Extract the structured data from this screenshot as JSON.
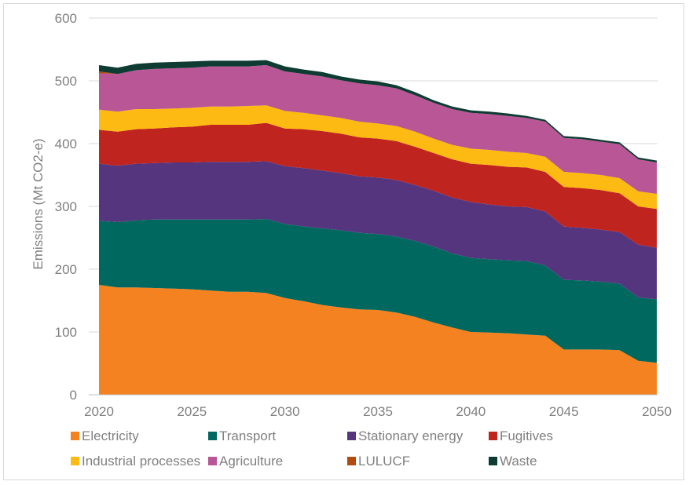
{
  "chart_data": {
    "type": "area",
    "stacked": true,
    "title": "",
    "xlabel": "",
    "ylabel": "Emissions (Mt CO2-e)",
    "xlim": [
      2020,
      2050
    ],
    "ylim": [
      0,
      600
    ],
    "x_ticks": [
      2020,
      2025,
      2030,
      2035,
      2040,
      2045,
      2050
    ],
    "y_ticks": [
      0,
      100,
      200,
      300,
      400,
      500,
      600
    ],
    "grid": true,
    "legend_position": "bottom",
    "x": [
      2020,
      2021,
      2022,
      2023,
      2024,
      2025,
      2026,
      2027,
      2028,
      2029,
      2030,
      2031,
      2032,
      2033,
      2034,
      2035,
      2036,
      2037,
      2038,
      2039,
      2040,
      2041,
      2042,
      2043,
      2044,
      2045,
      2046,
      2047,
      2048,
      2049,
      2050
    ],
    "series": [
      {
        "name": "Electricity",
        "color": "#F58220",
        "values": [
          175,
          171,
          171,
          170,
          169,
          168,
          166,
          164,
          164,
          162,
          154,
          149,
          143,
          139,
          136,
          135,
          131,
          124,
          115,
          107,
          100,
          99,
          98,
          96,
          94,
          72,
          72,
          72,
          71,
          54,
          51
        ]
      },
      {
        "name": "Transport",
        "color": "#00685E",
        "values": [
          102,
          104,
          107,
          109,
          110,
          111,
          113,
          115,
          115,
          118,
          118,
          119,
          122,
          123,
          122,
          121,
          121,
          121,
          121,
          118,
          118,
          117,
          116,
          117,
          112,
          111,
          110,
          108,
          106,
          101,
          101
        ]
      },
      {
        "name": "Stationary energy",
        "color": "#56357F",
        "values": [
          91,
          90,
          90,
          90,
          91,
          91,
          92,
          92,
          92,
          92,
          92,
          93,
          92,
          91,
          90,
          90,
          90,
          89,
          89,
          89,
          89,
          87,
          86,
          86,
          86,
          85,
          84,
          83,
          82,
          84,
          82
        ]
      },
      {
        "name": "Fugitives",
        "color": "#C0241E",
        "values": [
          54,
          54,
          55,
          55,
          56,
          57,
          59,
          59,
          59,
          61,
          60,
          62,
          63,
          63,
          62,
          62,
          62,
          61,
          60,
          61,
          61,
          63,
          63,
          63,
          63,
          63,
          63,
          63,
          62,
          61,
          62
        ]
      },
      {
        "name": "Industrial processes",
        "color": "#FDBA12",
        "values": [
          32,
          32,
          32,
          31,
          30,
          30,
          29,
          29,
          30,
          28,
          28,
          26,
          25,
          25,
          25,
          24,
          24,
          24,
          23,
          23,
          24,
          24,
          24,
          23,
          24,
          24,
          24,
          24,
          24,
          24,
          24
        ]
      },
      {
        "name": "Agriculture",
        "color": "#B95696",
        "values": [
          58,
          60,
          62,
          64,
          64,
          64,
          64,
          64,
          63,
          64,
          63,
          62,
          62,
          60,
          61,
          61,
          60,
          58,
          57,
          57,
          57,
          57,
          57,
          56,
          56,
          54,
          54,
          53,
          54,
          51,
          50
        ]
      },
      {
        "name": "LULUCF",
        "color": "#B34A0E",
        "values": [
          3,
          0,
          0,
          0,
          0,
          0,
          0,
          0,
          0,
          0,
          0,
          0,
          0,
          0,
          0,
          0,
          0,
          0,
          0,
          0,
          0,
          0,
          0,
          0,
          0,
          0,
          0,
          0,
          0,
          0,
          0
        ]
      },
      {
        "name": "Waste",
        "color": "#0E3B32",
        "values": [
          10,
          10,
          10,
          10,
          10,
          10,
          9,
          9,
          9,
          8,
          8,
          7,
          7,
          6,
          6,
          6,
          5,
          5,
          4,
          4,
          4,
          4,
          4,
          3,
          3,
          3,
          3,
          3,
          3,
          3,
          3
        ]
      }
    ]
  }
}
